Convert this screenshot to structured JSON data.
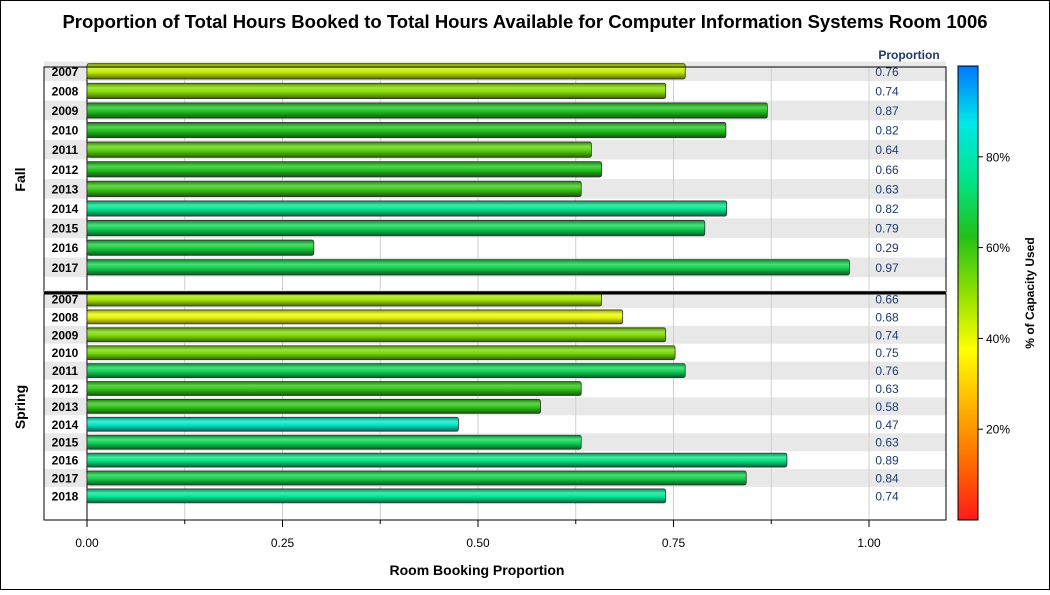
{
  "chart_data": {
    "type": "bar",
    "orientation": "horizontal",
    "title": "Proportion of Total Hours Booked to Total Hours Available for Computer Information Systems Room 1006",
    "xlabel": "Room Booking Proportion",
    "xlim": [
      0,
      1.1
    ],
    "x_ticks": [
      "0.00",
      "0.25",
      "0.50",
      "0.75",
      "1.00"
    ],
    "value_column_header": "Proportion",
    "colorbar": {
      "label": "% of Capacity Used",
      "range": [
        0,
        100
      ],
      "ticks": [
        "20%",
        "40%",
        "60%",
        "80%"
      ],
      "colors": [
        "#ff1a1a",
        "#ff6a00",
        "#ffb300",
        "#ffff00",
        "#90e000",
        "#22c11a",
        "#00e48a",
        "#00e8e8",
        "#0077ff"
      ]
    },
    "grid": true,
    "panels": [
      {
        "name": "Fall",
        "categories": [
          "2007",
          "2008",
          "2009",
          "2010",
          "2011",
          "2012",
          "2013",
          "2014",
          "2015",
          "2016",
          "2017"
        ],
        "values": [
          0.765,
          0.74,
          0.87,
          0.817,
          0.645,
          0.658,
          0.632,
          0.818,
          0.79,
          0.29,
          0.975
        ],
        "labels": [
          "0.76",
          "0.74",
          "0.87",
          "0.82",
          "0.64",
          "0.66",
          "0.63",
          "0.82",
          "0.79",
          "0.29",
          "0.97"
        ],
        "pct_capacity": [
          44,
          51,
          63,
          63,
          56,
          63,
          60,
          75,
          69,
          66,
          68
        ]
      },
      {
        "name": "Spring",
        "categories": [
          "2007",
          "2008",
          "2009",
          "2010",
          "2011",
          "2012",
          "2013",
          "2014",
          "2015",
          "2016",
          "2017",
          "2018"
        ],
        "values": [
          0.658,
          0.685,
          0.74,
          0.752,
          0.765,
          0.632,
          0.58,
          0.475,
          0.632,
          0.895,
          0.843,
          0.74
        ],
        "labels": [
          "0.66",
          "0.68",
          "0.74",
          "0.75",
          "0.76",
          "0.63",
          "0.58",
          "0.47",
          "0.63",
          "0.89",
          "0.84",
          "0.74"
        ],
        "pct_capacity": [
          47,
          40,
          52,
          53,
          69,
          61,
          61,
          83,
          69,
          74,
          68,
          76
        ]
      }
    ]
  }
}
